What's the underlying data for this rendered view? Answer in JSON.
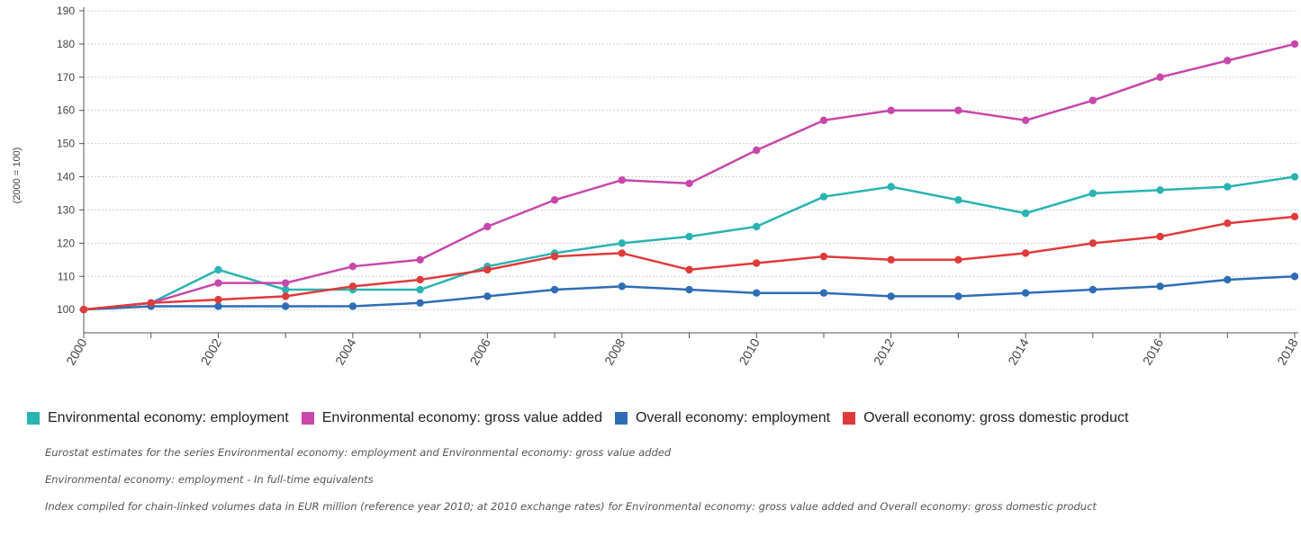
{
  "chart_data": {
    "type": "line",
    "ylabel": "(2000 = 100)",
    "xlabel": "",
    "x": [
      2000,
      2001,
      2002,
      2003,
      2004,
      2005,
      2006,
      2007,
      2008,
      2009,
      2010,
      2011,
      2012,
      2013,
      2014,
      2015,
      2016,
      2017,
      2018
    ],
    "xticks": [
      "2000",
      "2002",
      "2004",
      "2006",
      "2008",
      "2010",
      "2012",
      "2014",
      "2016",
      "2018"
    ],
    "yticks": [
      100,
      110,
      120,
      130,
      140,
      150,
      160,
      170,
      180,
      190
    ],
    "ylim": [
      93,
      190
    ],
    "grid": "horizontal dashed",
    "legend_position": "bottom",
    "series": [
      {
        "name": "Environmental economy: employment",
        "color": "#2ab3b3",
        "values": [
          100,
          102,
          112,
          106,
          106,
          106,
          113,
          117,
          120,
          122,
          125,
          134,
          137,
          133,
          129,
          135,
          136,
          137,
          140
        ]
      },
      {
        "name": "Environmental economy: gross value added",
        "color": "#c847ab",
        "values": [
          100,
          102,
          108,
          108,
          113,
          115,
          125,
          133,
          139,
          138,
          148,
          157,
          160,
          160,
          157,
          163,
          170,
          175,
          180
        ]
      },
      {
        "name": "Overall economy: employment",
        "color": "#2e6db6",
        "values": [
          100,
          101,
          101,
          101,
          101,
          102,
          104,
          106,
          107,
          106,
          105,
          105,
          104,
          104,
          105,
          106,
          107,
          109,
          110
        ]
      },
      {
        "name": "Overall economy: gross domestic product",
        "color": "#e03b3b",
        "values": [
          100,
          102,
          103,
          104,
          107,
          109,
          112,
          116,
          117,
          112,
          114,
          116,
          115,
          115,
          117,
          120,
          122,
          126,
          128
        ]
      }
    ]
  },
  "notes": [
    "Eurostat estimates for the series Environmental economy: employment and Environmental economy: gross value added",
    "Environmental economy: employment - In full-time equivalents",
    "Index compiled for chain-linked volumes data in EUR million (reference year 2010; at 2010 exchange rates) for Environmental economy: gross value added and Overall economy: gross domestic product"
  ]
}
